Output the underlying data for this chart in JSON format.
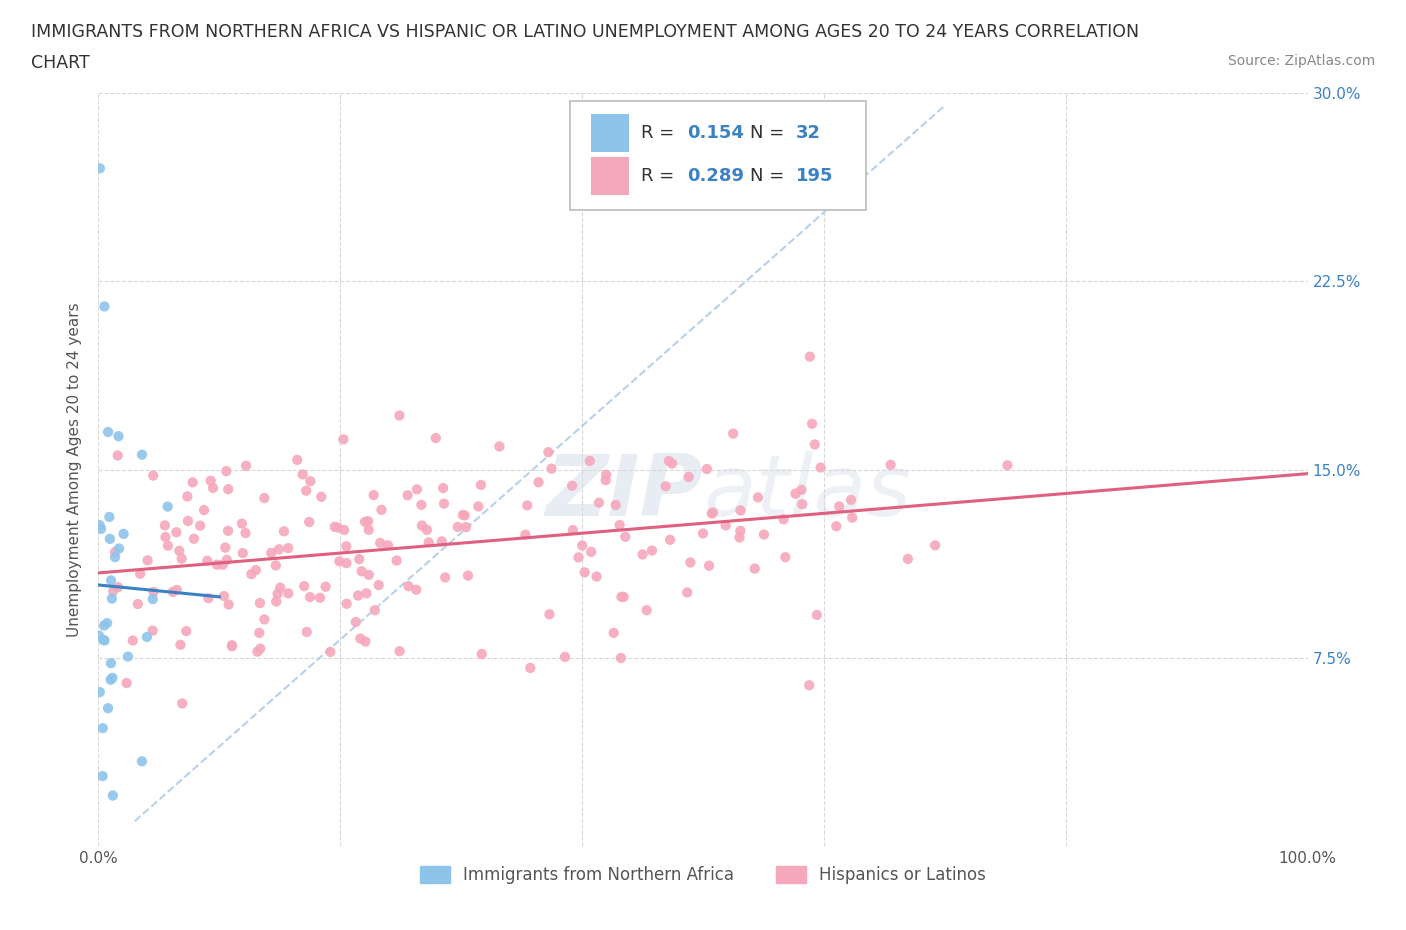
{
  "title_line1": "IMMIGRANTS FROM NORTHERN AFRICA VS HISPANIC OR LATINO UNEMPLOYMENT AMONG AGES 20 TO 24 YEARS CORRELATION",
  "title_line2": "CHART",
  "source": "Source: ZipAtlas.com",
  "ylabel": "Unemployment Among Ages 20 to 24 years",
  "xlim": [
    0,
    1.0
  ],
  "ylim": [
    0,
    0.3
  ],
  "blue_R": 0.154,
  "blue_N": 32,
  "pink_R": 0.289,
  "pink_N": 195,
  "blue_color": "#8ec4ea",
  "pink_color": "#f5a8bc",
  "blue_line_color": "#3b82c4",
  "pink_line_color": "#e06080",
  "diag_line_color": "#b0cce8",
  "background_color": "#ffffff",
  "grid_color": "#d8d8d8",
  "right_tick_color": "#3b82c4",
  "left_label_color": "#555555"
}
